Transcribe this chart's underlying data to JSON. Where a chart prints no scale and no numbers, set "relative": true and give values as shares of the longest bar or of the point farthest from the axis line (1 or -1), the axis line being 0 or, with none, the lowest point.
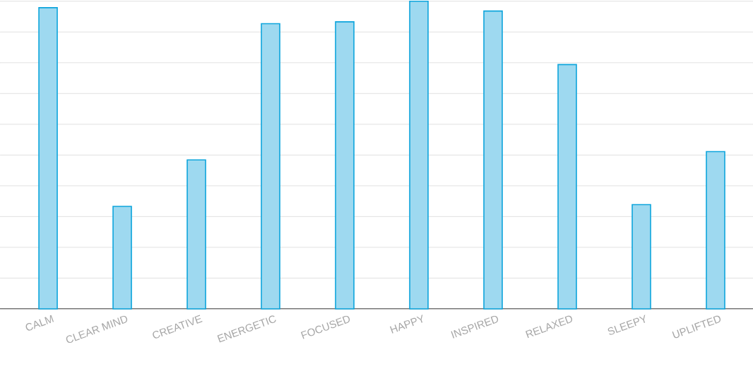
{
  "chart_data": {
    "type": "bar",
    "relative": true,
    "grid": "y",
    "categories": [
      "CALM",
      "CLEAR MIND",
      "CREATIVE",
      "ENERGETIC",
      "FOCUSED",
      "HAPPY",
      "INSPIRED",
      "RELAXED",
      "SLEEPY",
      "UPLIFTED"
    ],
    "series": [
      {
        "color": "#0ea5dc",
        "values": [
          0.979,
          0.333,
          0.484,
          0.927,
          0.933,
          1,
          0.968,
          0.794,
          0.339,
          0.511
        ]
      }
    ]
  }
}
